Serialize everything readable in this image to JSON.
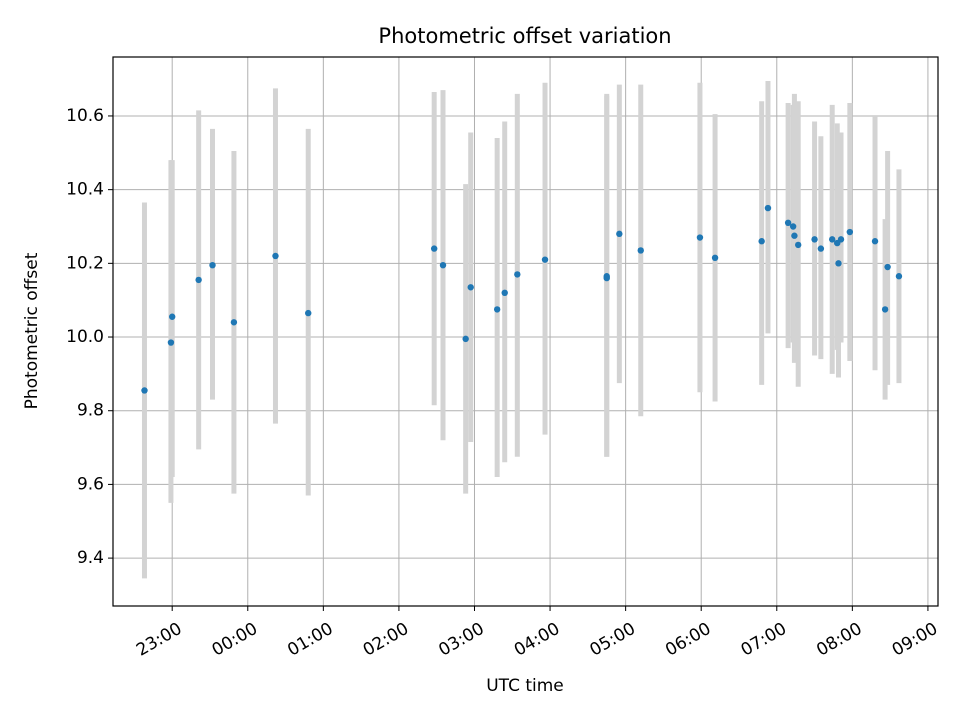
{
  "chart_data": {
    "type": "scatter",
    "title": "Photometric offset variation",
    "xlabel": "UTC time",
    "ylabel": "Photometric offset",
    "grid": true,
    "xaxis_type": "time",
    "xlim": [
      "22:13",
      "09:08"
    ],
    "ylim": [
      9.27,
      10.76
    ],
    "x_ticks": [
      "23:00",
      "00:00",
      "01:00",
      "02:00",
      "03:00",
      "04:00",
      "05:00",
      "06:00",
      "07:00",
      "08:00",
      "09:00"
    ],
    "y_ticks": [
      9.4,
      9.6,
      9.8,
      10.0,
      10.2,
      10.4,
      10.6
    ],
    "y_tick_labels": [
      "9.4",
      "9.6",
      "9.8",
      "10.0",
      "10.2",
      "10.4",
      "10.6"
    ],
    "marker_color": "#1f77b4",
    "errorbar_color": "#d3d3d3",
    "points": [
      {
        "x": "22:38",
        "y": 9.855,
        "low": 9.345,
        "high": 10.365
      },
      {
        "x": "22:59",
        "y": 9.985,
        "low": 9.55,
        "high": 10.48
      },
      {
        "x": "23:00",
        "y": 10.055,
        "low": 9.62,
        "high": 10.48
      },
      {
        "x": "23:21",
        "y": 10.155,
        "low": 9.695,
        "high": 10.615
      },
      {
        "x": "23:32",
        "y": 10.195,
        "low": 9.83,
        "high": 10.565
      },
      {
        "x": "23:49",
        "y": 10.04,
        "low": 9.575,
        "high": 10.505
      },
      {
        "x": "00:22",
        "y": 10.22,
        "low": 9.765,
        "high": 10.675
      },
      {
        "x": "00:48",
        "y": 10.065,
        "low": 9.57,
        "high": 10.565
      },
      {
        "x": "02:28",
        "y": 10.24,
        "low": 9.815,
        "high": 10.665
      },
      {
        "x": "02:35",
        "y": 10.195,
        "low": 9.72,
        "high": 10.67
      },
      {
        "x": "02:53",
        "y": 9.995,
        "low": 9.575,
        "high": 10.415
      },
      {
        "x": "02:57",
        "y": 10.135,
        "low": 9.715,
        "high": 10.555
      },
      {
        "x": "03:18",
        "y": 10.075,
        "low": 9.62,
        "high": 10.54
      },
      {
        "x": "03:24",
        "y": 10.12,
        "low": 9.66,
        "high": 10.585
      },
      {
        "x": "03:34",
        "y": 10.17,
        "low": 9.675,
        "high": 10.66
      },
      {
        "x": "03:56",
        "y": 10.21,
        "low": 9.735,
        "high": 10.69
      },
      {
        "x": "04:45",
        "y": 10.165,
        "low": 9.675,
        "high": 10.66
      },
      {
        "x": "04:45",
        "y": 10.16,
        "low": 9.675,
        "high": 10.655
      },
      {
        "x": "04:55",
        "y": 10.28,
        "low": 9.875,
        "high": 10.685
      },
      {
        "x": "05:12",
        "y": 10.235,
        "low": 9.785,
        "high": 10.685
      },
      {
        "x": "05:59",
        "y": 10.27,
        "low": 9.85,
        "high": 10.69
      },
      {
        "x": "06:11",
        "y": 10.215,
        "low": 9.825,
        "high": 10.605
      },
      {
        "x": "06:48",
        "y": 10.26,
        "low": 9.87,
        "high": 10.64
      },
      {
        "x": "06:53",
        "y": 10.35,
        "low": 10.01,
        "high": 10.695
      },
      {
        "x": "07:09",
        "y": 10.31,
        "low": 9.97,
        "high": 10.635
      },
      {
        "x": "07:13",
        "y": 10.3,
        "low": 9.985,
        "high": 10.63
      },
      {
        "x": "07:14",
        "y": 10.275,
        "low": 9.93,
        "high": 10.66
      },
      {
        "x": "07:17",
        "y": 10.25,
        "low": 9.865,
        "high": 10.64
      },
      {
        "x": "07:30",
        "y": 10.265,
        "low": 9.95,
        "high": 10.585
      },
      {
        "x": "07:35",
        "y": 10.24,
        "low": 9.94,
        "high": 10.545
      },
      {
        "x": "07:44",
        "y": 10.265,
        "low": 9.9,
        "high": 10.63
      },
      {
        "x": "07:48",
        "y": 10.255,
        "low": 9.965,
        "high": 10.58
      },
      {
        "x": "07:49",
        "y": 10.2,
        "low": 9.89,
        "high": 10.55
      },
      {
        "x": "07:51",
        "y": 10.265,
        "low": 9.985,
        "high": 10.555
      },
      {
        "x": "07:58",
        "y": 10.285,
        "low": 9.935,
        "high": 10.635
      },
      {
        "x": "08:18",
        "y": 10.26,
        "low": 9.91,
        "high": 10.6
      },
      {
        "x": "08:26",
        "y": 10.075,
        "low": 9.83,
        "high": 10.32
      },
      {
        "x": "08:28",
        "y": 10.19,
        "low": 9.87,
        "high": 10.505
      },
      {
        "x": "08:37",
        "y": 10.165,
        "low": 9.875,
        "high": 10.455
      }
    ]
  }
}
